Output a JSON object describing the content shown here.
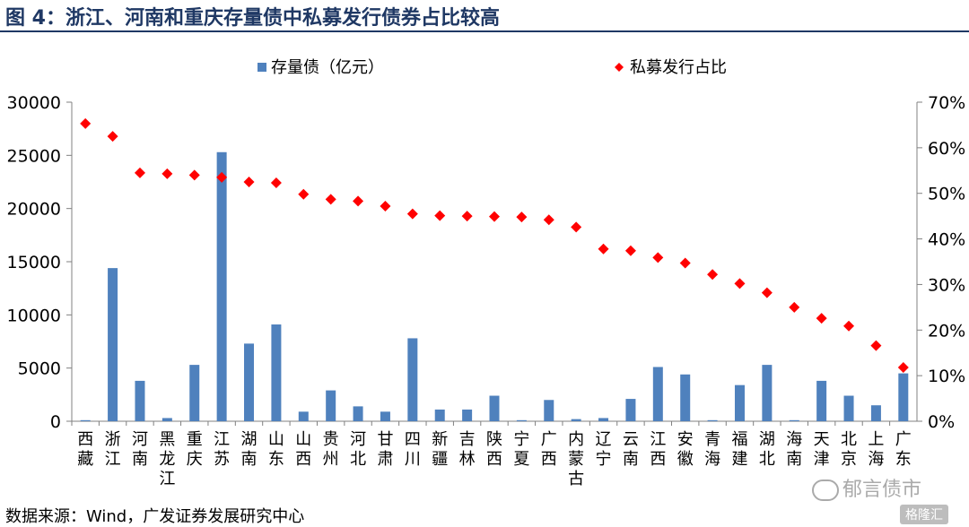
{
  "figure": {
    "title": "图 4：浙江、河南和重庆存量债中私募发行债券占比较高",
    "source": "数据来源：Wind，广发证券发展研究中心",
    "watermark": "郁言债市",
    "corner_logo": "格隆汇"
  },
  "chart_data": {
    "type": "bar",
    "categories": [
      "西藏",
      "浙江",
      "河南",
      "黑龙江",
      "重庆",
      "江苏",
      "湖南",
      "山东",
      "山西",
      "贵州",
      "河北",
      "甘肃",
      "四川",
      "新疆",
      "吉林",
      "陕西",
      "宁夏",
      "广西",
      "内蒙古",
      "辽宁",
      "云南",
      "江西",
      "安徽",
      "青海",
      "福建",
      "湖北",
      "海南",
      "天津",
      "北京",
      "上海",
      "广东"
    ],
    "series": [
      {
        "name": "存量债（亿元）",
        "type": "bar",
        "axis": "left",
        "color": "#4f81bd",
        "values": [
          100,
          14400,
          3800,
          300,
          5300,
          25300,
          7300,
          9100,
          900,
          2900,
          1400,
          900,
          7800,
          1100,
          1100,
          2400,
          100,
          2000,
          200,
          300,
          2100,
          5100,
          4400,
          100,
          3400,
          5300,
          100,
          3800,
          2400,
          1500,
          4500
        ]
      },
      {
        "name": "私募发行占比",
        "type": "scatter",
        "axis": "right",
        "color": "#ff0000",
        "marker": "diamond",
        "values": [
          65.3,
          62.5,
          54.5,
          54.3,
          54,
          53.5,
          52.5,
          52.3,
          49.8,
          48.7,
          48.3,
          47.2,
          45.5,
          45.1,
          45,
          44.9,
          44.8,
          44.2,
          42.6,
          37.8,
          37.4,
          35.9,
          34.7,
          32.2,
          30.2,
          28.2,
          25,
          22.6,
          20.9,
          16.6,
          11.8
        ]
      }
    ],
    "y_left": {
      "min": 0,
      "max": 30000,
      "ticks": [
        "0",
        "5000",
        "10000",
        "15000",
        "20000",
        "25000",
        "30000"
      ]
    },
    "y_right": {
      "min": 0,
      "max": 70,
      "ticks": [
        "0%",
        "10%",
        "20%",
        "30%",
        "40%",
        "50%",
        "60%",
        "70%"
      ]
    },
    "legend_position": "top",
    "grid": false
  }
}
